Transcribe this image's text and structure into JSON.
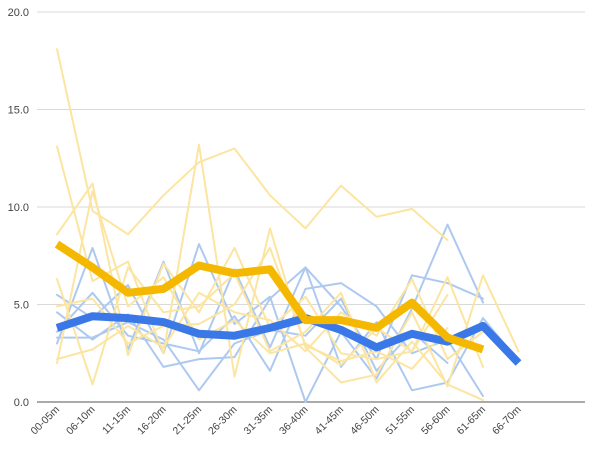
{
  "chart_data": {
    "type": "line",
    "title": "",
    "xlabel": "",
    "ylabel": "",
    "categories": [
      "00-05m",
      "06-10m",
      "11-15m",
      "16-20m",
      "21-25m",
      "26-30m",
      "31-35m",
      "36-40m",
      "41-45m",
      "46-50m",
      "51-55m",
      "56-60m",
      "61-65m",
      "66-70m"
    ],
    "yticks": [
      "0.0",
      "5.0",
      "10.0",
      "15.0",
      "20.0"
    ],
    "ylim": [
      0,
      20
    ],
    "grid": true,
    "legend": "none",
    "colors": {
      "blue_light": "#aec9f0",
      "yellow_light": "#fce5a0",
      "blue_bold": "#3b78e7",
      "yellow_bold": "#f5b800"
    },
    "series": [
      {
        "color": "blue_light",
        "values": [
          3.0,
          7.9,
          2.7,
          7.2,
          2.5,
          6.8,
          2.8,
          6.9,
          4.9,
          2.2,
          6.5,
          6.1,
          5.3,
          null
        ]
      },
      {
        "color": "blue_light",
        "values": [
          5.5,
          4.3,
          6.0,
          2.5,
          8.1,
          4.0,
          5.4,
          0.0,
          3.6,
          1.2,
          4.8,
          9.1,
          5.1,
          null
        ]
      },
      {
        "color": "blue_light",
        "values": [
          4.6,
          3.2,
          4.5,
          1.8,
          2.2,
          2.3,
          5.3,
          6.9,
          1.8,
          4.1,
          0.6,
          1.0,
          4.3,
          2.1
        ]
      },
      {
        "color": "blue_light",
        "values": [
          3.6,
          5.6,
          3.4,
          3.0,
          2.6,
          4.4,
          1.6,
          5.8,
          6.1,
          4.9,
          2.5,
          3.2,
          0.3,
          null
        ]
      },
      {
        "color": "blue_light",
        "values": [
          3.3,
          3.3,
          4.1,
          3.2,
          0.6,
          3.0,
          3.7,
          3.4,
          5.3,
          1.6,
          3.6,
          2.0,
          null,
          null
        ]
      },
      {
        "color": "yellow_light",
        "values": [
          18.1,
          9.8,
          8.6,
          10.6,
          12.3,
          13.0,
          10.6,
          8.9,
          11.1,
          9.5,
          9.9,
          8.3,
          null,
          null
        ]
      },
      {
        "color": "yellow_light",
        "values": [
          13.1,
          6.2,
          7.2,
          2.5,
          13.2,
          1.3,
          8.9,
          2.8,
          1.0,
          1.4,
          4.6,
          0.8,
          6.5,
          2.6
        ]
      },
      {
        "color": "yellow_light",
        "values": [
          8.6,
          11.2,
          2.4,
          7.1,
          4.6,
          7.9,
          3.8,
          5.4,
          2.5,
          2.2,
          2.6,
          6.4,
          1.8,
          null
        ]
      },
      {
        "color": "yellow_light",
        "values": [
          6.3,
          0.9,
          6.9,
          4.6,
          4.9,
          6.6,
          2.6,
          3.6,
          5.6,
          1.0,
          3.1,
          0.9,
          0.1,
          null
        ]
      },
      {
        "color": "yellow_light",
        "values": [
          4.9,
          5.3,
          3.0,
          3.9,
          4.0,
          5.0,
          7.9,
          2.9,
          2.1,
          2.6,
          1.7,
          3.8,
          null,
          null
        ]
      },
      {
        "color": "yellow_light",
        "values": [
          2.2,
          2.7,
          3.9,
          2.8,
          5.6,
          4.6,
          4.2,
          2.6,
          4.6,
          3.4,
          6.3,
          2.2,
          3.6,
          null
        ]
      },
      {
        "color": "yellow_light",
        "values": [
          2.0,
          10.8,
          4.9,
          6.4,
          3.2,
          4.2,
          2.5,
          3.0,
          1.9,
          3.8,
          2.6,
          5.5,
          null,
          null
        ]
      },
      {
        "color": "blue_bold",
        "values": [
          3.8,
          4.4,
          4.3,
          4.1,
          3.5,
          3.4,
          3.8,
          4.3,
          3.7,
          2.8,
          3.5,
          3.1,
          3.9,
          2.0
        ]
      },
      {
        "color": "yellow_bold",
        "values": [
          8.1,
          6.9,
          5.6,
          5.8,
          7.0,
          6.6,
          6.8,
          4.2,
          4.2,
          3.8,
          5.1,
          3.3,
          2.7,
          null
        ]
      }
    ]
  }
}
